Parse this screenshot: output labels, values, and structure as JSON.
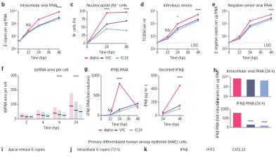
{
  "chart_data": [
    {
      "type": "line",
      "panel": "b",
      "title": "Intracellular viral RNA",
      "ylabel": "E copies per µg RNA",
      "xlabel": "Time (hpi)",
      "log_y": true,
      "x": [
        0,
        2,
        6,
        12,
        24,
        48
      ],
      "xlim": [
        0,
        48
      ],
      "xticks": [
        0,
        12,
        24,
        36,
        48
      ],
      "ylim": [
        10000,
        10000000000
      ],
      "yticks": [
        {
          "value": 10000,
          "label": "10⁴"
        },
        {
          "value": 1000000,
          "label": "10⁶"
        },
        {
          "value": 100000000,
          "label": "10⁸"
        },
        {
          "value": 10000000000,
          "label": "10¹⁰"
        }
      ],
      "series": [
        {
          "name": "Alpha",
          "color": "#e8467c",
          "values": [
            200000,
            200000,
            1000000,
            10000000,
            500000000,
            8000000000
          ]
        },
        {
          "name": "VIC",
          "color": "#5d6386",
          "values": [
            200000,
            200000,
            800000,
            5000000,
            50000000,
            1000000000
          ]
        },
        {
          "name": "IC19",
          "color": "#8aa7d6",
          "values": [
            200000,
            200000,
            700000,
            4000000,
            40000000,
            600000000
          ]
        }
      ],
      "annotations": [
        {
          "text": "NS",
          "x": 12,
          "y": 60000000
        },
        {
          "text": "****",
          "x": 48,
          "y": 30000000000
        }
      ]
    },
    {
      "type": "line",
      "panel": "c",
      "title": "Nucleocapsid (N)⁺ cells",
      "ylabel": "N⁺ cells (%)",
      "xlabel": "Time (hpi)",
      "log_y": false,
      "legend": true,
      "x": [
        0,
        24,
        48
      ],
      "xlim": [
        0,
        48
      ],
      "xticks": [
        0,
        24,
        48
      ],
      "ylim": [
        0,
        100
      ],
      "yticks": [
        0,
        25,
        50,
        75,
        100
      ],
      "series": [
        {
          "name": "Alpha",
          "color": "#e8467c",
          "values": [
            0,
            95,
            97
          ]
        },
        {
          "name": "VIC",
          "color": "#5d6386",
          "values": [
            0,
            60,
            70
          ]
        },
        {
          "name": "IC19",
          "color": "#8aa7d6",
          "values": [
            0,
            45,
            40
          ]
        }
      ],
      "annotations": [
        {
          "text": "****",
          "x": 24,
          "y": 104
        },
        {
          "text": "****",
          "x": 48,
          "y": 104
        }
      ]
    },
    {
      "type": "line",
      "panel": "d",
      "title": "Infectious virions",
      "ylabel": "TCID50 per ml",
      "xlabel": "Time (hpi)",
      "log_y": true,
      "x": [
        0,
        12,
        24,
        48
      ],
      "xlim": [
        0,
        48
      ],
      "xticks": [
        0,
        12,
        24,
        36,
        48
      ],
      "ylim": [
        10,
        10000000
      ],
      "yticks": [
        {
          "value": 10,
          "label": "10¹"
        },
        {
          "value": 1000,
          "label": "10³"
        },
        {
          "value": 100000,
          "label": "10⁵"
        },
        {
          "value": 10000000,
          "label": "10⁷"
        }
      ],
      "lod": {
        "value": 100,
        "label": "LOD"
      },
      "series": [
        {
          "name": "Alpha",
          "color": "#e8467c",
          "values": [
            100,
            1000,
            100000,
            3000000
          ]
        },
        {
          "name": "VIC",
          "color": "#5d6386",
          "values": [
            100,
            500,
            20000,
            500000
          ]
        },
        {
          "name": "IC19",
          "color": "#8aa7d6",
          "values": [
            100,
            400,
            10000,
            300000
          ]
        }
      ],
      "annotations": [
        {
          "text": "NS",
          "x": 12,
          "y": 8000
        },
        {
          "text": "*",
          "x": 24,
          "y": 1000000
        },
        {
          "text": "****",
          "x": 48,
          "y": 12000000
        }
      ]
    },
    {
      "type": "line",
      "panel": "e",
      "title": "Negative-sense viral RNA",
      "ylabel": "E negative copies per µg RNA",
      "xlabel": "Time (hpi)",
      "log_y": true,
      "x": [
        0,
        12,
        24,
        48
      ],
      "xlim": [
        0,
        48
      ],
      "xticks": [
        0,
        12,
        24,
        36,
        48
      ],
      "ylim": [
        1000,
        1000000000
      ],
      "yticks": [
        {
          "value": 1000,
          "label": "10³"
        },
        {
          "value": 100000,
          "label": "10⁵"
        },
        {
          "value": 10000000,
          "label": "10⁷"
        },
        {
          "value": 1000000000,
          "label": "10⁹"
        }
      ],
      "lod": {
        "value": 10000,
        "label": "LOD"
      },
      "series": [
        {
          "name": "Alpha",
          "color": "#e8467c",
          "values": [
            10000,
            100000,
            30000000,
            300000000
          ]
        },
        {
          "name": "VIC",
          "color": "#5d6386",
          "values": [
            10000,
            50000,
            5000000,
            80000000
          ]
        },
        {
          "name": "IC19",
          "color": "#8aa7d6",
          "values": [
            10000,
            40000,
            3000000,
            50000000
          ]
        }
      ],
      "annotations": [
        {
          "text": "****",
          "x": 48,
          "y": 1200000000
        }
      ]
    },
    {
      "type": "strip",
      "panel": "f",
      "title": "dsRNA area per cell",
      "ylabel": "dsRNA area per cell",
      "xlabel": "Time (hpi)",
      "categories": [
        "2",
        "4",
        "6",
        "24"
      ],
      "ylim": [
        0,
        300
      ],
      "yticks": [
        0,
        100,
        200,
        300
      ],
      "series": [
        {
          "name": "Alpha",
          "color": "#e8467c",
          "values": [
            20,
            30,
            40,
            90
          ]
        },
        {
          "name": "VIC",
          "color": "#5d6386",
          "values": [
            15,
            25,
            30,
            60
          ]
        },
        {
          "name": "IC19",
          "color": "#8aa7d6",
          "values": [
            15,
            20,
            25,
            50
          ]
        }
      ],
      "annotations": [
        {
          "text": "****",
          "category": 2,
          "y": 290
        },
        {
          "text": "****",
          "category": 3,
          "y": 290
        }
      ]
    },
    {
      "type": "line",
      "panel": "g",
      "title": "IFNβ RNA",
      "ylabel": "IFNβ RNA (fold induction)",
      "xlabel": "Time (hpi)",
      "log_y": false,
      "legend": true,
      "x": [
        0,
        12,
        24,
        48
      ],
      "xlim": [
        0,
        48
      ],
      "xticks": [
        0,
        12,
        24,
        36,
        48
      ],
      "ylim": [
        0,
        1000
      ],
      "yticks": [
        0,
        500,
        1000
      ],
      "series": [
        {
          "name": "Alpha",
          "color": "#e8467c",
          "values": [
            1,
            20,
            800,
            200
          ]
        },
        {
          "name": "VIC",
          "color": "#5d6386",
          "values": [
            1,
            10,
            150,
            300
          ]
        },
        {
          "name": "IC19",
          "color": "#8aa7d6",
          "values": [
            1,
            10,
            100,
            250
          ]
        }
      ],
      "annotations": [
        {
          "text": "NS",
          "x": 12,
          "y": 120
        },
        {
          "text": "****",
          "x": 24,
          "y": 900
        }
      ]
    },
    {
      "type": "line",
      "title": "Secreted IFNβ",
      "ylabel": "IFNβ (pg ml⁻¹)",
      "xlabel": "Time (hpi)",
      "log_y": false,
      "x": [
        24,
        48
      ],
      "xlim": [
        18,
        54
      ],
      "xticks": [
        24,
        48
      ],
      "ylim": [
        0,
        600
      ],
      "yticks": [
        0,
        200,
        400,
        600
      ],
      "series": [
        {
          "name": "Alpha",
          "color": "#e8467c",
          "values": [
            50,
            450
          ]
        },
        {
          "name": "VIC",
          "color": "#5d6386",
          "values": [
            30,
            150
          ]
        },
        {
          "name": "IC19",
          "color": "#8aa7d6",
          "values": [
            20,
            100
          ]
        }
      ],
      "annotations": [
        {
          "text": "****",
          "x": 48,
          "y": 560
        }
      ]
    },
    {
      "type": "bar",
      "panel": "h",
      "title": "Intracellular viral RNA (24 h)",
      "ylabel": "E copies per µg RNA",
      "log_y": true,
      "categories": [
        "Alpha",
        "VIC",
        "IC19"
      ],
      "colors": [
        "#e8467c",
        "#5d6386",
        "#8aa7d6"
      ],
      "values": [
        5000000000,
        3000000000,
        2000000000
      ],
      "ylim": [
        1000000,
        10000000000
      ],
      "yticks": [
        {
          "value": 1000000,
          "label": "10⁶"
        },
        {
          "value": 100000000,
          "label": "10⁸"
        },
        {
          "value": 10000000000,
          "label": "10¹⁰"
        }
      ]
    },
    {
      "type": "bar",
      "title": "IFNβ RNA (24 h)",
      "ylabel": "IFNβ RNA (fold induction)",
      "log_y": false,
      "categories": [
        "Alpha",
        "VIC",
        "IC19"
      ],
      "colors": [
        "#e8467c",
        "#5d6386",
        "#8aa7d6"
      ],
      "values": [
        800,
        150,
        100
      ],
      "ylim": [
        0,
        1000
      ],
      "yticks": [
        0,
        500,
        1000
      ],
      "annotations": [
        {
          "text": "****",
          "category": 1,
          "y": 300
        },
        {
          "text": "****",
          "category": 2,
          "y": 250
        }
      ]
    }
  ],
  "footer": {
    "caption": "Primary differentiated human airway epithelial (HAE) cells",
    "panels": [
      {
        "letter": "i",
        "title": "Apical release E copies"
      },
      {
        "letter": "j",
        "title": "Intracellular E copies (72 h)"
      },
      {
        "letter": "k",
        "title": "IFNβ"
      }
    ],
    "genes": [
      "IFIT1",
      "CXCL10"
    ]
  }
}
